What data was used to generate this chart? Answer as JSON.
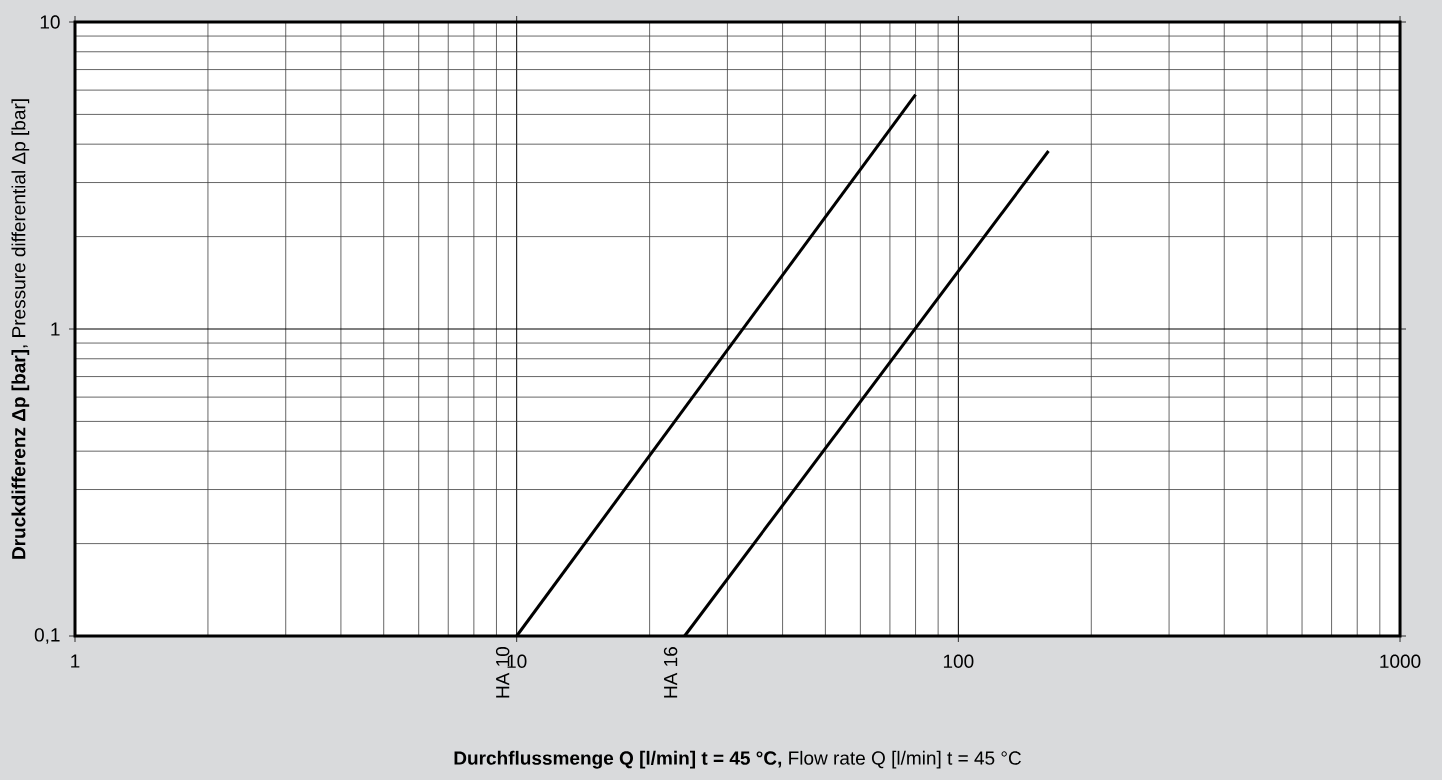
{
  "chart_data": {
    "type": "line",
    "xlabel": "**Durchflussmenge Q [l/min] t = 45 °C,** Flow rate Q [l/min] t = 45 °C",
    "ylabel": "**Druckdifferenz Δp [bar]**, Pressure differential Δp [bar]",
    "series": [
      {
        "name": "HA 10",
        "color": "#000000",
        "x": [
          10,
          80
        ],
        "values": [
          0.1,
          5.8
        ]
      },
      {
        "name": "HA 16",
        "color": "#000000",
        "x": [
          24,
          160
        ],
        "values": [
          0.1,
          3.8
        ]
      }
    ],
    "xlim": [
      1,
      1000
    ],
    "ylim": [
      0.1,
      10
    ],
    "xticks": [
      1,
      10,
      100,
      1000
    ],
    "yticks": [
      {
        "value": 0.1,
        "label": "0,1"
      },
      1,
      10
    ],
    "log": "xy",
    "grid": true,
    "legend": false,
    "line_style": "solid",
    "marker": "none"
  }
}
